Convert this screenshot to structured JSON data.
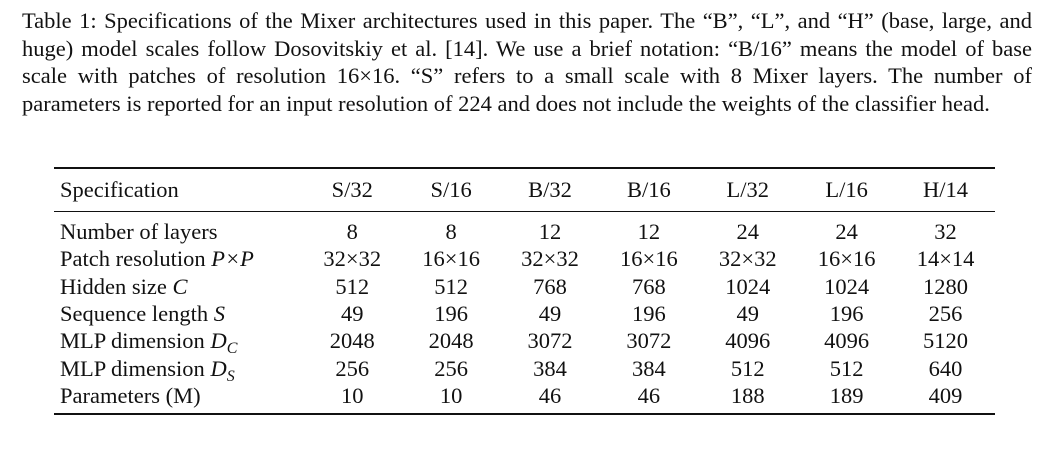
{
  "caption": {
    "label": "Table 1:",
    "text": "Specifications of the Mixer architectures used in this paper. The “B”, “L”, and “H” (base, large, and huge) model scales follow Dosovitskiy et al. [14]. We use a brief notation: “B/16” means the model of base scale with patches of resolution 16×16. “S” refers to a small scale with 8 Mixer layers. The number of parameters is reported for an input resolution of 224 and does not include the weights of the classifier head."
  },
  "table": {
    "header": {
      "spec": "Specification",
      "columns": [
        "S/32",
        "S/16",
        "B/32",
        "B/16",
        "L/32",
        "L/16",
        "H/14"
      ]
    },
    "rows": [
      {
        "label": "Number of layers",
        "math": "",
        "sub": "",
        "values": [
          "8",
          "8",
          "12",
          "12",
          "24",
          "24",
          "32"
        ]
      },
      {
        "label": "Patch resolution ",
        "math": "P×P",
        "sub": "",
        "values": [
          "32×32",
          "16×16",
          "32×32",
          "16×16",
          "32×32",
          "16×16",
          "14×14"
        ]
      },
      {
        "label": "Hidden size ",
        "math": "C",
        "sub": "",
        "values": [
          "512",
          "512",
          "768",
          "768",
          "1024",
          "1024",
          "1280"
        ]
      },
      {
        "label": "Sequence length ",
        "math": "S",
        "sub": "",
        "values": [
          "49",
          "196",
          "49",
          "196",
          "49",
          "196",
          "256"
        ]
      },
      {
        "label": "MLP dimension ",
        "math": "D",
        "sub": "C",
        "values": [
          "2048",
          "2048",
          "3072",
          "3072",
          "4096",
          "4096",
          "5120"
        ]
      },
      {
        "label": "MLP dimension ",
        "math": "D",
        "sub": "S",
        "values": [
          "256",
          "256",
          "384",
          "384",
          "512",
          "512",
          "640"
        ]
      },
      {
        "label": "Parameters (M)",
        "math": "",
        "sub": "",
        "values": [
          "10",
          "10",
          "46",
          "46",
          "188",
          "189",
          "409"
        ]
      }
    ]
  }
}
